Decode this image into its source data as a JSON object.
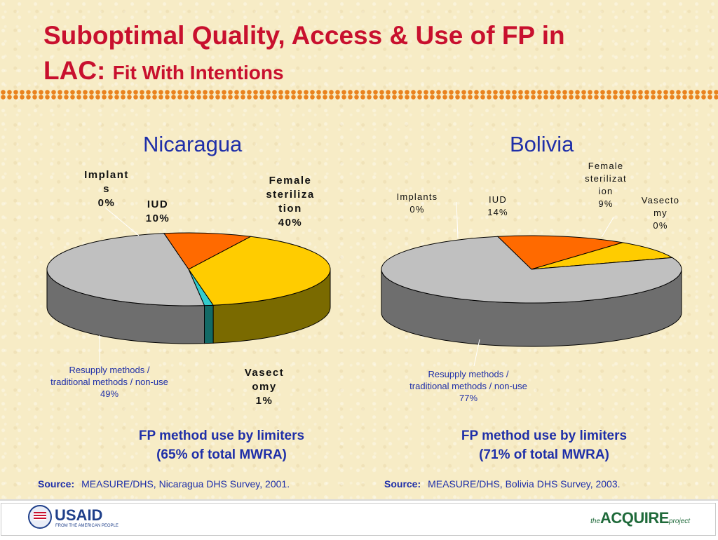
{
  "slide": {
    "title_main": "Suboptimal Quality, Access & Use of FP in",
    "title_lac": "LAC:",
    "title_sub": "Fit With Intentions"
  },
  "chart_data": [
    {
      "type": "pie",
      "title": "Nicaragua",
      "caption_line1": "FP method use by limiters",
      "caption_line2": "(65% of total MWRA)",
      "slices": [
        {
          "key": "implants",
          "label_lines": [
            "Implant",
            "s",
            "0%"
          ],
          "value": 0,
          "color": "#2f8f86",
          "side": "#1d5c56"
        },
        {
          "key": "iud",
          "label_lines": [
            "IUD",
            "10%"
          ],
          "value": 10,
          "color": "#ff6a00",
          "side": "#a84300"
        },
        {
          "key": "female_sterilization",
          "label_lines": [
            "Female",
            "steriliza",
            "tion",
            "40%"
          ],
          "value": 40,
          "color": "#ffcc00",
          "side": "#7a6a00"
        },
        {
          "key": "vasectomy",
          "label_lines": [
            "Vasect",
            "omy",
            "1%"
          ],
          "value": 1,
          "color": "#33cccc",
          "side": "#136a66"
        },
        {
          "key": "resupply",
          "label_lines": [
            "Resupply methods /",
            "traditional methods / non-use",
            "49%"
          ],
          "value": 49,
          "color": "#c0c0c0",
          "side": "#6e6e6e"
        }
      ],
      "source_label": "Source:",
      "source_text": "MEASURE/DHS, Nicaragua DHS Survey, 2001."
    },
    {
      "type": "pie",
      "title": "Bolivia",
      "caption_line1": "FP method use by limiters",
      "caption_line2": "(71% of total MWRA)",
      "slices": [
        {
          "key": "implants",
          "label_lines": [
            "Implants",
            "0%"
          ],
          "value": 0,
          "color": "#2f8f86",
          "side": "#1d5c56"
        },
        {
          "key": "iud",
          "label_lines": [
            "IUD",
            "14%"
          ],
          "value": 14,
          "color": "#ff6a00",
          "side": "#a84300"
        },
        {
          "key": "female_sterilization",
          "label_lines": [
            "Female",
            "sterilizat",
            "ion",
            "9%"
          ],
          "value": 9,
          "color": "#ffcc00",
          "side": "#7a6a00"
        },
        {
          "key": "vasectomy",
          "label_lines": [
            "Vasecto",
            "my",
            "0%"
          ],
          "value": 0,
          "color": "#33cccc",
          "side": "#136a66"
        },
        {
          "key": "resupply",
          "label_lines": [
            "Resupply methods /",
            "traditional methods / non-use",
            "77%"
          ],
          "value": 77,
          "color": "#c0c0c0",
          "side": "#6e6e6e"
        }
      ],
      "source_label": "Source:",
      "source_text": "MEASURE/DHS, Bolivia DHS Survey, 2003."
    }
  ],
  "footer": {
    "usaid_logo_text": "USAID",
    "usaid_tagline": "FROM THE AMERICAN PEOPLE",
    "acquire_the": "the",
    "acquire_name": "ACQUIRE",
    "acquire_project": "project"
  }
}
